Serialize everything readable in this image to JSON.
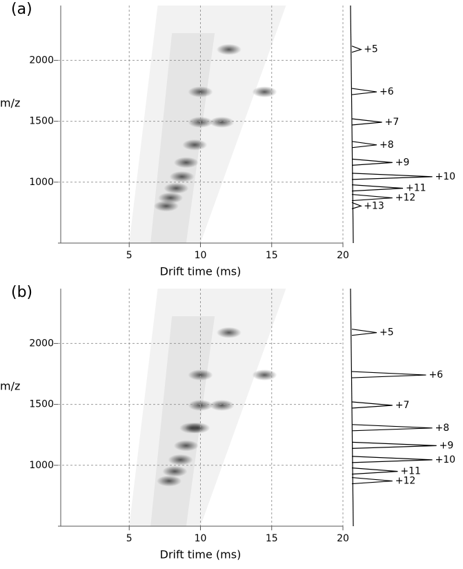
{
  "chart_data": [
    {
      "type": "heatmap",
      "panel_label": "(a)",
      "x_label": "Drift time (ms)",
      "y_label": "m/z",
      "xlim": [
        0,
        20
      ],
      "xticks": [
        5,
        10,
        15,
        20
      ],
      "ylim": [
        500,
        2450
      ],
      "yticks": [
        1000,
        1500,
        2000
      ],
      "grid": true,
      "spots": {
        "x": [
          7.6,
          7.9,
          8.3,
          8.7,
          9.0,
          9.6,
          10.0,
          11.5,
          10.0,
          14.5,
          12.0
        ],
        "y": [
          804,
          871,
          950,
          1045,
          1161,
          1306,
          1492,
          1492,
          1741,
          1741,
          2089
        ]
      },
      "spectrum": {
        "color": "#000000",
        "intensity_lim": [
          0,
          100
        ],
        "annotations": [
          "+5",
          "+6",
          "+7",
          "+8",
          "+9",
          "+10",
          "+11",
          "+12",
          "+13"
        ],
        "mz": [
          2089,
          1741,
          1492,
          1306,
          1161,
          1045,
          950,
          871,
          804
        ],
        "intensity": [
          10,
          25,
          30,
          25,
          40,
          78,
          50,
          40,
          10
        ]
      }
    },
    {
      "type": "heatmap",
      "panel_label": "(b)",
      "x_label": "Drift time (ms)",
      "y_label": "m/z",
      "xlim": [
        0,
        20
      ],
      "xticks": [
        5,
        10,
        15,
        20
      ],
      "ylim": [
        500,
        2450
      ],
      "yticks": [
        1000,
        1500,
        2000
      ],
      "grid": true,
      "spots": {
        "x": [
          7.8,
          8.2,
          8.6,
          9.0,
          9.4,
          9.8,
          10.0,
          11.5,
          10.0,
          14.5,
          12.0
        ],
        "y": [
          871,
          950,
          1045,
          1161,
          1306,
          1306,
          1492,
          1492,
          1741,
          1741,
          2089
        ]
      },
      "spectrum": {
        "color": "#000000",
        "intensity_lim": [
          0,
          100
        ],
        "annotations": [
          "+5",
          "+6",
          "+7",
          "+8",
          "+9",
          "+10",
          "+11",
          "+12"
        ],
        "mz": [
          2089,
          1741,
          1492,
          1306,
          1161,
          1045,
          950,
          871
        ],
        "intensity": [
          25,
          72,
          40,
          78,
          82,
          78,
          45,
          40
        ]
      }
    }
  ]
}
